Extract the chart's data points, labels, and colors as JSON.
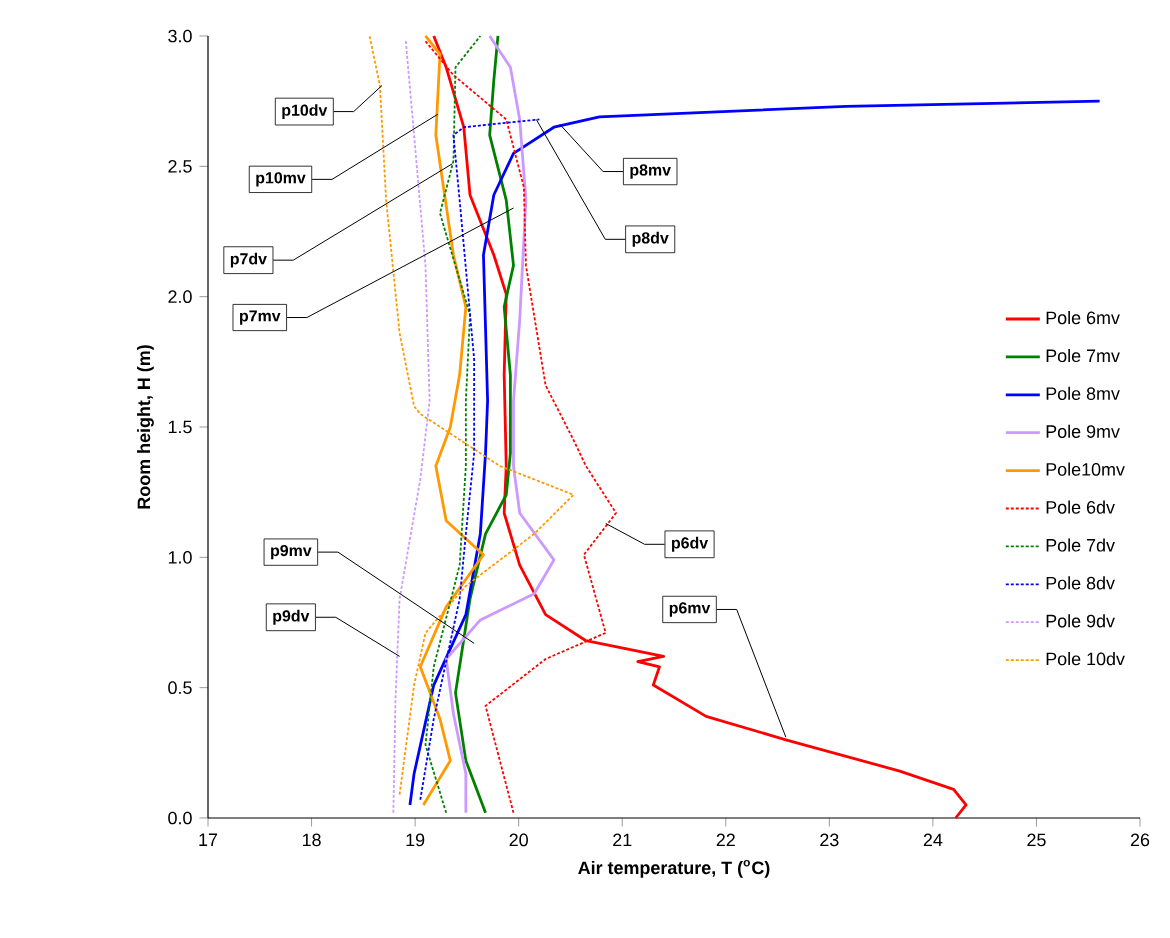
{
  "chart_data": {
    "type": "line",
    "xlabel": "Air temperature, T ($^{o}$C)",
    "ylabel": "Room height, H (m)",
    "xlim": [
      17,
      26
    ],
    "xticks": [
      17,
      18,
      19,
      20,
      21,
      22,
      23,
      24,
      25,
      26
    ],
    "ylim": [
      0,
      3
    ],
    "yticks": [
      {
        "value": 0,
        "label": "0.0"
      },
      {
        "value": 0.5,
        "label": "0.5"
      },
      {
        "value": 1,
        "label": "1.0"
      },
      {
        "value": 1.5,
        "label": "1.5"
      },
      {
        "value": 2,
        "label": "2.0"
      },
      {
        "value": 2.5,
        "label": "2.5"
      },
      {
        "value": 3,
        "label": "3.0"
      }
    ],
    "legend": "right",
    "grid": false,
    "series": [
      {
        "name": "Pole 6mv",
        "color": "#ff0000",
        "line_style": "solid",
        "x": [
          24.22,
          24.32,
          24.2,
          23.68,
          22.58,
          21.81,
          21.3,
          21.36,
          21.15,
          21.4,
          20.65,
          20.26,
          20.01,
          19.86,
          19.88,
          19.86,
          19.88,
          19.76,
          19.53,
          19.47,
          19.3,
          19.18
        ],
        "values": [
          0.0,
          0.05,
          0.11,
          0.18,
          0.3,
          0.39,
          0.51,
          0.58,
          0.6,
          0.62,
          0.68,
          0.78,
          0.97,
          1.17,
          1.35,
          1.7,
          2.01,
          2.16,
          2.39,
          2.65,
          2.88,
          3.0
        ]
      },
      {
        "name": "Pole 7mv",
        "color": "#008000",
        "line_style": "solid",
        "x": [
          19.68,
          19.49,
          19.39,
          19.53,
          19.68,
          19.88,
          19.92,
          19.92,
          19.86,
          19.95,
          19.88,
          19.72,
          19.76,
          19.8
        ],
        "values": [
          0.02,
          0.22,
          0.48,
          0.84,
          1.09,
          1.24,
          1.4,
          1.7,
          1.96,
          2.12,
          2.37,
          2.62,
          2.83,
          3.0
        ]
      },
      {
        "name": "Pole 8mv",
        "color": "#0000ff",
        "line_style": "solid",
        "x": [
          18.95,
          18.99,
          19.18,
          19.49,
          19.63,
          19.68,
          19.7,
          19.66,
          19.76,
          19.95,
          20.34,
          20.78,
          23.16,
          25.61
        ],
        "values": [
          0.05,
          0.17,
          0.51,
          0.78,
          1.09,
          1.4,
          1.6,
          2.16,
          2.39,
          2.55,
          2.65,
          2.69,
          2.73,
          2.75
        ]
      },
      {
        "name": "Pole 9mv",
        "color": "#cc99ff",
        "line_style": "solid",
        "x": [
          19.49,
          19.49,
          19.37,
          19.3,
          19.63,
          20.15,
          20.34,
          20.01,
          19.95,
          19.95,
          20.01,
          20.07,
          20.01,
          19.92,
          19.72
        ],
        "values": [
          0.02,
          0.17,
          0.4,
          0.61,
          0.76,
          0.86,
          0.99,
          1.17,
          1.35,
          1.6,
          1.91,
          2.37,
          2.68,
          2.88,
          3.0
        ]
      },
      {
        "name": "Pole10mv",
        "color": "#ff9900",
        "line_style": "solid",
        "x": [
          19.08,
          19.34,
          19.24,
          19.05,
          19.3,
          19.66,
          19.3,
          19.2,
          19.34,
          19.43,
          19.49,
          19.37,
          19.2,
          19.24,
          19.1
        ],
        "values": [
          0.05,
          0.22,
          0.38,
          0.58,
          0.81,
          1.01,
          1.14,
          1.35,
          1.5,
          1.7,
          1.96,
          2.16,
          2.62,
          2.93,
          3.0
        ]
      },
      {
        "name": "Pole 6dv",
        "color": "#ff0000",
        "line_style": "dotted",
        "x": [
          19.95,
          19.68,
          20.26,
          20.84,
          20.63,
          20.94,
          20.65,
          20.53,
          20.26,
          20.07,
          20.05,
          19.88,
          19.37,
          19.1
        ],
        "values": [
          0.02,
          0.43,
          0.61,
          0.71,
          1.01,
          1.17,
          1.35,
          1.45,
          1.66,
          2.12,
          2.42,
          2.68,
          2.85,
          2.98
        ]
      },
      {
        "name": "Pole 7dv",
        "color": "#008000",
        "line_style": "dotted",
        "x": [
          19.3,
          19.1,
          19.18,
          19.43,
          19.49,
          19.49,
          19.53,
          19.24,
          19.37,
          19.39,
          19.63
        ],
        "values": [
          0.02,
          0.28,
          0.58,
          0.97,
          1.35,
          1.6,
          1.93,
          2.32,
          2.52,
          2.88,
          3.0
        ]
      },
      {
        "name": "Pole 8dv",
        "color": "#0000ff",
        "line_style": "dotted",
        "x": [
          19.05,
          19.18,
          19.43,
          19.49,
          19.57,
          19.57,
          19.43,
          19.37,
          19.47,
          20.2
        ],
        "values": [
          0.07,
          0.38,
          0.84,
          1.09,
          1.4,
          1.76,
          2.37,
          2.62,
          2.65,
          2.68
        ]
      },
      {
        "name": "Pole 9dv",
        "color": "#cc99ff",
        "line_style": "dotted",
        "x": [
          18.79,
          18.81,
          18.85,
          19.05,
          19.14,
          19.1,
          18.99,
          18.91
        ],
        "values": [
          0.02,
          0.45,
          0.84,
          1.3,
          1.6,
          2.12,
          2.62,
          2.98
        ]
      },
      {
        "name": "Pole 10dv",
        "color": "#ff9900",
        "line_style": "dotted",
        "x": [
          18.85,
          18.99,
          19.1,
          19.49,
          20.15,
          20.53,
          19.82,
          19.05,
          18.99,
          18.85,
          18.72,
          18.66,
          18.56
        ],
        "values": [
          0.09,
          0.51,
          0.71,
          0.89,
          1.09,
          1.24,
          1.35,
          1.55,
          1.58,
          1.86,
          2.37,
          2.81,
          3.0
        ]
      }
    ],
    "annotations": [
      {
        "text": "p10dv",
        "x": 18.68,
        "y": 2.81
      },
      {
        "text": "p10mv",
        "x": 19.22,
        "y": 2.7
      },
      {
        "text": "p7dv",
        "x": 19.36,
        "y": 2.51
      },
      {
        "text": "p7mv",
        "x": 19.95,
        "y": 2.34
      },
      {
        "text": "p8mv",
        "x": 20.4,
        "y": 2.66
      },
      {
        "text": "p8dv",
        "x": 20.17,
        "y": 2.68
      },
      {
        "text": "p9mv",
        "x": 19.57,
        "y": 0.67
      },
      {
        "text": "p9dv",
        "x": 18.85,
        "y": 0.62
      },
      {
        "text": "p6dv",
        "x": 20.84,
        "y": 1.13
      },
      {
        "text": "p6mv",
        "x": 22.58,
        "y": 0.31
      }
    ]
  }
}
